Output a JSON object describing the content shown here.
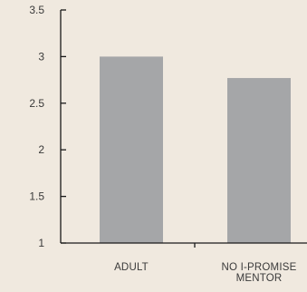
{
  "chart_data": {
    "type": "bar",
    "title": "",
    "xlabel": "",
    "ylabel": "",
    "categories": [
      {
        "label_lines": [
          "ADULT"
        ]
      },
      {
        "label_lines": [
          "NO I-PROMISE",
          "MENTOR"
        ]
      }
    ],
    "values": [
      3.0,
      2.77
    ],
    "ylim": [
      1,
      3.5
    ],
    "yticks": [
      "1",
      "1.5",
      "2",
      "2.5",
      "3",
      "3.5"
    ],
    "grid": false,
    "legend": "none",
    "colors": {
      "bar": "#a5a6a8",
      "axis": "#1a1a1a",
      "background": "#f0e9df"
    }
  }
}
